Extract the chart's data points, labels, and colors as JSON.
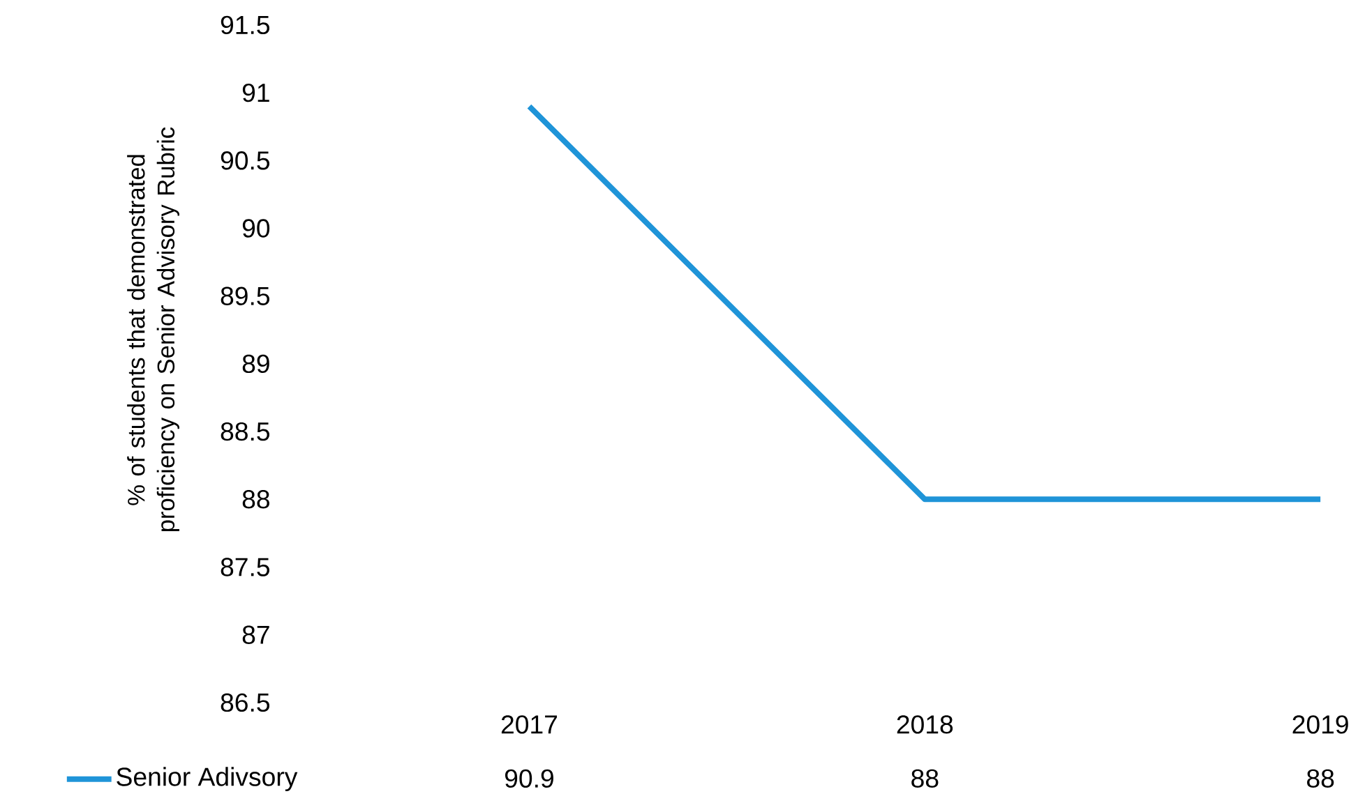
{
  "chart_data": {
    "type": "line",
    "ylabel": "% of students that demonstrated proficiency on Senior Advisory Rubric",
    "categories": [
      "2017",
      "2018",
      "2019"
    ],
    "series": [
      {
        "name": "Senior Adivsory",
        "color": "#1f94d8",
        "values": [
          90.9,
          88,
          88
        ]
      }
    ],
    "ylim": [
      86.5,
      91.5
    ],
    "yticks": [
      86.5,
      87,
      87.5,
      88,
      88.5,
      89,
      89.5,
      90,
      90.5,
      91,
      91.5
    ],
    "data_labels": true,
    "legend": "bottom left",
    "grid": false,
    "marker": "none",
    "line_style": "solid"
  }
}
